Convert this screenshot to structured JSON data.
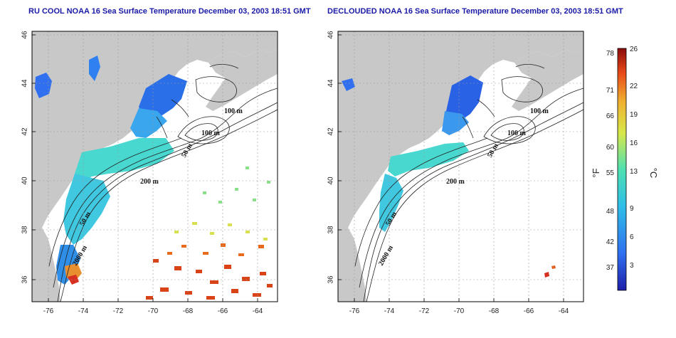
{
  "titles": {
    "left": "RU COOL NOAA 16 Sea Surface Temperature December 03, 2003 18:51 GMT",
    "right": "DECLOUDED NOAA 16 Sea Surface Temperature December 03, 2003 18:51 GMT"
  },
  "axes": {
    "lon_ticks": [
      "-76",
      "-74",
      "-72",
      "-70",
      "-68",
      "-66",
      "-64"
    ],
    "lat_ticks": [
      "46",
      "44",
      "42",
      "40",
      "38",
      "36"
    ]
  },
  "contour_labels": {
    "m100_a": "100 m",
    "m100_b": "100 m",
    "m50_a": "50 m",
    "m200": "200 m",
    "m50_b": "50 m",
    "m2000": "2000 m"
  },
  "colorbar": {
    "fahrenheit_ticks": [
      "78",
      "71",
      "66",
      "60",
      "55",
      "48",
      "42",
      "37"
    ],
    "celsius_ticks": [
      "26",
      "22",
      "19",
      "16",
      "13",
      "9",
      "6",
      "3"
    ],
    "unit_f": "°F",
    "unit_c": "°C",
    "colors": [
      "#1e1ea8",
      "#2f6ff0",
      "#2fbfe8",
      "#4fe0b0",
      "#d8e84a",
      "#f0b030",
      "#e84818",
      "#8a0b0b"
    ]
  },
  "colors": {
    "land": "#c8c8c8",
    "frame": "#000000",
    "grid": "#9a9a9a",
    "contour": "#222222"
  }
}
